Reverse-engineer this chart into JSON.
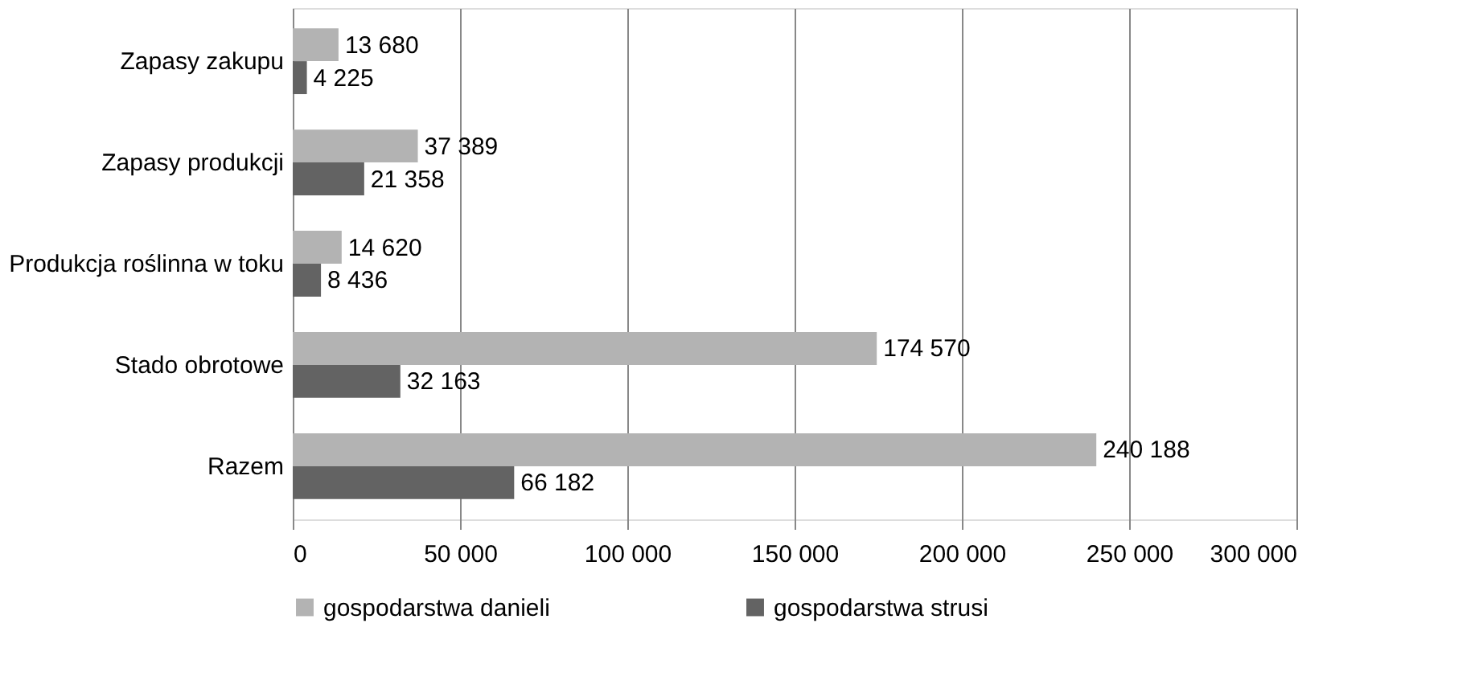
{
  "chart_data": {
    "type": "bar",
    "orientation": "horizontal",
    "categories": [
      "Zapasy zakupu",
      "Zapasy produkcji",
      "Produkcja roślinna w toku",
      "Stado obrotowe",
      "Razem"
    ],
    "series": [
      {
        "name": "gospodarstwa danieli",
        "color": "#b3b3b3",
        "values": [
          13680,
          37389,
          14620,
          174570,
          240188
        ],
        "value_labels": [
          "13 680",
          "37 389",
          "14 620",
          "174 570",
          "240 188"
        ]
      },
      {
        "name": "gospodarstwa strusi",
        "color": "#636363",
        "values": [
          4225,
          21358,
          8436,
          32163,
          66182
        ],
        "value_labels": [
          "4 225",
          "21 358",
          "8 436",
          "32 163",
          "66 182"
        ]
      }
    ],
    "xlim": [
      0,
      300000
    ],
    "xticks": [
      0,
      {
        "value": 50000,
        "label": "50 000"
      },
      {
        "value": 100000,
        "label": "100 000"
      },
      {
        "value": 150000,
        "label": "150 000"
      },
      {
        "value": 200000,
        "label": "200 000"
      },
      {
        "value": 250000,
        "label": "250 000"
      },
      {
        "value": 300000,
        "label": "300 000"
      }
    ],
    "grid": "x",
    "legend": "bottom"
  }
}
